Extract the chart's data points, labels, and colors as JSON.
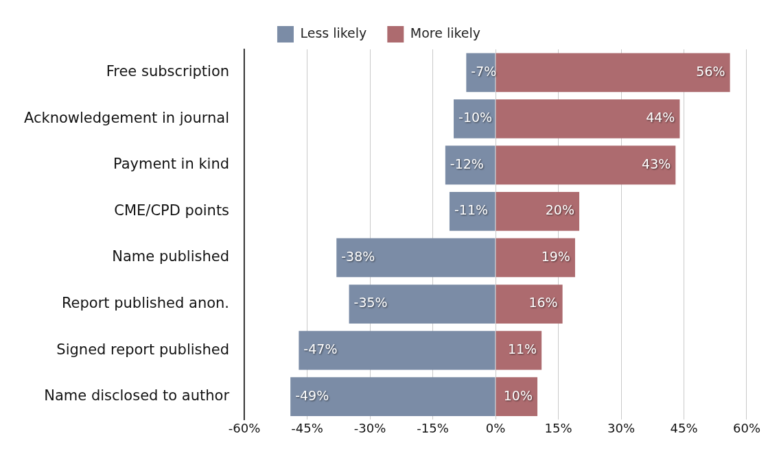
{
  "chart_data": {
    "type": "bar",
    "orientation": "horizontal",
    "stacked": true,
    "categories": [
      "Free subscription",
      "Acknowledgement in journal",
      "Payment in kind",
      "CME/CPD points",
      "Name published",
      "Report published anon.",
      "Signed report published",
      "Name disclosed to author"
    ],
    "series": [
      {
        "name": "Less likely",
        "color": "#7b8ca6",
        "values": [
          -7,
          -10,
          -12,
          -11,
          -38,
          -35,
          -47,
          -49
        ],
        "value_labels": [
          "-7%",
          "-10%",
          "-12%",
          "-11%",
          "-38%",
          "-35%",
          "-47%",
          "-49%"
        ]
      },
      {
        "name": "More likely",
        "color": "#ad6b6f",
        "values": [
          56,
          44,
          43,
          20,
          19,
          16,
          11,
          10
        ],
        "value_labels": [
          "56%",
          "44%",
          "43%",
          "20%",
          "19%",
          "16%",
          "11%",
          "10%"
        ]
      }
    ],
    "xlim": [
      -60,
      60
    ],
    "xticks": [
      {
        "value": -60,
        "label": "-60%"
      },
      {
        "value": -45,
        "label": "-45%"
      },
      {
        "value": -30,
        "label": "-30%"
      },
      {
        "value": -15,
        "label": "-15%"
      },
      {
        "value": 0,
        "label": "0%"
      },
      {
        "value": 15,
        "label": "15%"
      },
      {
        "value": 30,
        "label": "30%"
      },
      {
        "value": 45,
        "label": "45%"
      },
      {
        "value": 60,
        "label": "60%"
      }
    ],
    "grid": "x",
    "legend": "top"
  }
}
